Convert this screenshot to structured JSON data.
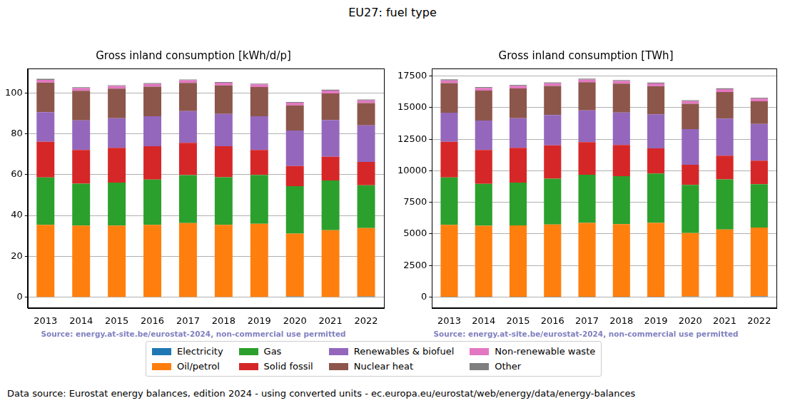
{
  "title": "EU27: fuel type",
  "footer": "Data source: Eurostat energy balances, edition 2024 - using converted units - ec.europa.eu/eurostat/web/energy/data/energy-balances",
  "legend": "bottom",
  "chart_data": [
    {
      "type": "bar",
      "stacked": true,
      "grid": true,
      "title": "Gross inland consumption [kWh/d/p]",
      "annotation": "Source: energy.at-site.be/eurostat-2024, non-commercial use permitted",
      "categories": [
        "2013",
        "2014",
        "2015",
        "2016",
        "2017",
        "2018",
        "2019",
        "2020",
        "2021",
        "2022"
      ],
      "ylim": [
        -5.3,
        112
      ],
      "yticks": [
        0,
        20,
        40,
        60,
        80,
        100
      ],
      "series": [
        {
          "name": "Electricity",
          "color": "#1f77b4",
          "values": [
            0.1,
            0.1,
            0.1,
            0.1,
            0.1,
            0.1,
            0.1,
            0.3,
            0.1,
            0.3
          ]
        },
        {
          "name": "Oil/petrol",
          "color": "#ff7f0e",
          "values": [
            35.3,
            35,
            35,
            35.3,
            36.2,
            35.3,
            35.8,
            30.8,
            32.7,
            33.5
          ]
        },
        {
          "name": "Gas",
          "color": "#2ca02c",
          "values": [
            23.2,
            20.5,
            21,
            22.2,
            23.5,
            23.3,
            24,
            23.3,
            24.4,
            21
          ]
        },
        {
          "name": "Solid fossil",
          "color": "#d62728",
          "values": [
            17.5,
            16.5,
            17,
            16.3,
            15.8,
            15.2,
            12.2,
            9.8,
            11.6,
            11.4
          ]
        },
        {
          "name": "Renewables & biofuel",
          "color": "#9467bd",
          "values": [
            14.5,
            14.5,
            14.5,
            14.7,
            15.5,
            15.8,
            16.5,
            17.4,
            18,
            17.9
          ]
        },
        {
          "name": "Nuclear heat",
          "color": "#8c564b",
          "values": [
            14.5,
            14.5,
            14.5,
            14.5,
            13.8,
            14,
            14.3,
            12.3,
            13,
            11
          ]
        },
        {
          "name": "Non-renewable waste",
          "color": "#e377c2",
          "values": [
            1.3,
            1.3,
            1.3,
            1.3,
            1.3,
            1.3,
            1.3,
            1.3,
            1.4,
            1.3
          ]
        },
        {
          "name": "Other",
          "color": "#7f7f7f",
          "values": [
            0.5,
            0.4,
            0.4,
            0.4,
            0.4,
            0.4,
            0.4,
            0.4,
            0.4,
            0.4
          ]
        }
      ]
    },
    {
      "type": "bar",
      "stacked": true,
      "grid": true,
      "title": "Gross inland consumption [TWh]",
      "annotation": "Source: energy.at-site.be/eurostat-2024, non-commercial use permitted",
      "categories": [
        "2013",
        "2014",
        "2015",
        "2016",
        "2017",
        "2018",
        "2019",
        "2020",
        "2021",
        "2022"
      ],
      "ylim": [
        -870,
        18100
      ],
      "yticks": [
        0,
        2500,
        5000,
        7500,
        10000,
        12500,
        15000,
        17500
      ],
      "series": [
        {
          "name": "Electricity",
          "color": "#1f77b4",
          "values": [
            15,
            15,
            15,
            15,
            15,
            15,
            15,
            40,
            20,
            50
          ]
        },
        {
          "name": "Oil/petrol",
          "color": "#ff7f0e",
          "values": [
            5700,
            5630,
            5650,
            5730,
            5850,
            5750,
            5850,
            5020,
            5320,
            5450
          ]
        },
        {
          "name": "Gas",
          "color": "#2ca02c",
          "values": [
            3750,
            3320,
            3400,
            3620,
            3820,
            3800,
            3920,
            3820,
            3970,
            3430
          ]
        },
        {
          "name": "Solid fossil",
          "color": "#d62728",
          "values": [
            2830,
            2680,
            2750,
            2650,
            2580,
            2470,
            1990,
            1600,
            1880,
            1870
          ]
        },
        {
          "name": "Renewables & biofuel",
          "color": "#9467bd",
          "values": [
            2300,
            2330,
            2350,
            2400,
            2520,
            2580,
            2700,
            2820,
            2940,
            2910
          ]
        },
        {
          "name": "Nuclear heat",
          "color": "#8c564b",
          "values": [
            2350,
            2370,
            2350,
            2300,
            2230,
            2280,
            2230,
            2000,
            2110,
            1790
          ]
        },
        {
          "name": "Non-renewable waste",
          "color": "#e377c2",
          "values": [
            210,
            210,
            210,
            210,
            210,
            210,
            210,
            210,
            220,
            210
          ]
        },
        {
          "name": "Other",
          "color": "#7f7f7f",
          "values": [
            80,
            70,
            70,
            70,
            70,
            70,
            70,
            70,
            70,
            70
          ]
        }
      ]
    }
  ]
}
